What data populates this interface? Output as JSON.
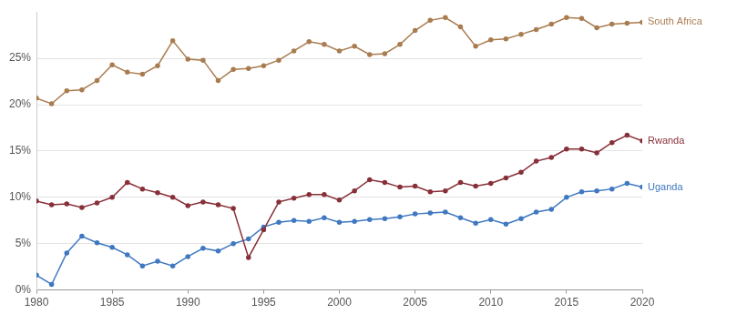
{
  "chart_data": {
    "type": "line",
    "x": [
      1980,
      1981,
      1982,
      1983,
      1984,
      1985,
      1986,
      1987,
      1988,
      1989,
      1990,
      1991,
      1992,
      1993,
      1994,
      1995,
      1996,
      1997,
      1998,
      1999,
      2000,
      2001,
      2002,
      2003,
      2004,
      2005,
      2006,
      2007,
      2008,
      2009,
      2010,
      2011,
      2012,
      2013,
      2014,
      2015,
      2016,
      2017,
      2018,
      2019,
      2020
    ],
    "series": [
      {
        "name": "South Africa",
        "color": "#a97c50",
        "values": [
          20.7,
          20.1,
          21.5,
          21.6,
          22.6,
          24.3,
          23.5,
          23.3,
          24.2,
          26.9,
          24.9,
          24.8,
          22.6,
          23.8,
          23.9,
          24.2,
          24.8,
          25.8,
          26.8,
          26.5,
          25.8,
          26.3,
          25.4,
          25.5,
          26.5,
          28.0,
          29.1,
          29.4,
          28.4,
          26.3,
          27.0,
          27.1,
          27.6,
          28.1,
          28.7,
          29.4,
          29.3,
          28.3,
          28.7,
          28.8,
          28.9
        ]
      },
      {
        "name": "Rwanda",
        "color": "#883039",
        "values": [
          9.6,
          9.2,
          9.3,
          8.9,
          9.4,
          10.0,
          11.6,
          10.9,
          10.5,
          10.0,
          9.1,
          9.5,
          9.2,
          8.8,
          3.5,
          6.5,
          9.5,
          9.9,
          10.3,
          10.3,
          9.7,
          10.7,
          11.9,
          11.6,
          11.1,
          11.2,
          10.6,
          10.7,
          11.6,
          11.2,
          11.5,
          12.1,
          12.7,
          13.9,
          14.3,
          15.2,
          15.2,
          14.8,
          15.9,
          16.7,
          16.1
        ]
      },
      {
        "name": "Uganda",
        "color": "#3f78c1",
        "values": [
          1.6,
          0.6,
          4.0,
          5.8,
          5.1,
          4.6,
          3.8,
          2.6,
          3.1,
          2.6,
          3.6,
          4.5,
          4.2,
          5.0,
          5.5,
          6.8,
          7.3,
          7.5,
          7.4,
          7.8,
          7.3,
          7.4,
          7.6,
          7.7,
          7.9,
          8.2,
          8.3,
          8.4,
          7.8,
          7.2,
          7.6,
          7.1,
          7.7,
          8.4,
          8.7,
          10.0,
          10.6,
          10.7,
          10.9,
          11.5,
          11.1
        ]
      }
    ],
    "xlim": [
      1980,
      2020
    ],
    "xticks": [
      1980,
      1985,
      1990,
      1995,
      2000,
      2005,
      2010,
      2015,
      2020
    ],
    "ylim": [
      0,
      30
    ],
    "yticks": [
      {
        "value": 0,
        "label": "0%"
      },
      {
        "value": 5,
        "label": "5%"
      },
      {
        "value": 10,
        "label": "10%"
      },
      {
        "value": 15,
        "label": "15%"
      },
      {
        "value": 20,
        "label": "20%"
      },
      {
        "value": 25,
        "label": "25%"
      }
    ],
    "grid": true,
    "marker": "circle"
  }
}
